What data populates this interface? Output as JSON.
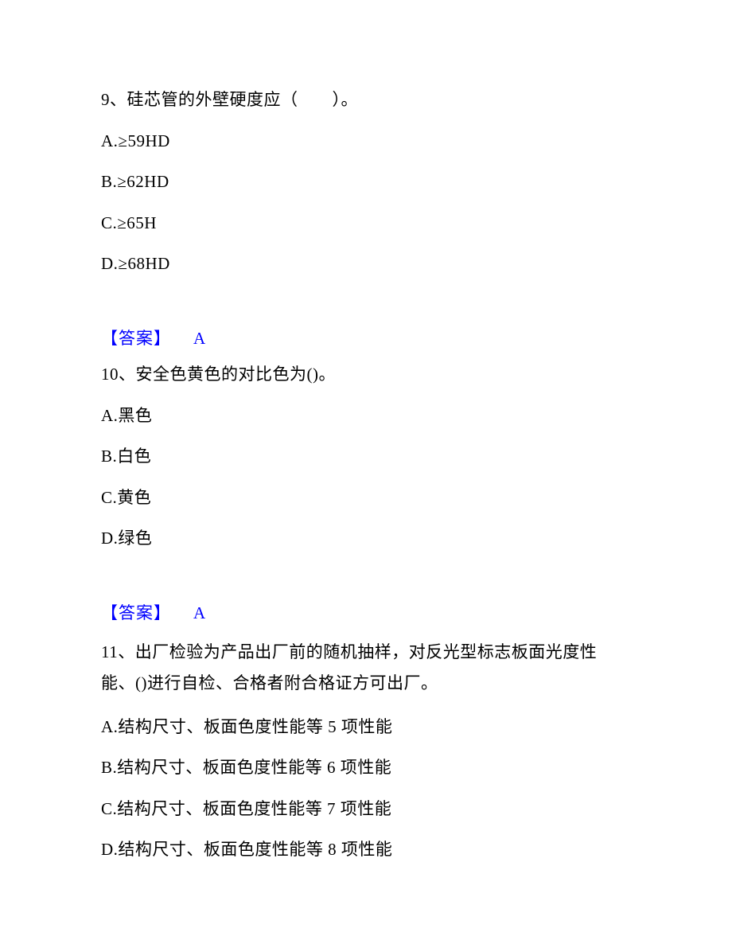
{
  "questions": [
    {
      "number_label": "9、",
      "text": "硅芯管的外壁硬度应（　　）。",
      "options": [
        {
          "label": "A.",
          "text": "≥59HD"
        },
        {
          "label": "B.",
          "text": "≥62HD"
        },
        {
          "label": "C.",
          "text": "≥65H"
        },
        {
          "label": "D.",
          "text": "≥68HD"
        }
      ],
      "answer_label": "【答案】",
      "answer_value": "A"
    },
    {
      "number_label": "10、",
      "text": "安全色黄色的对比色为()。",
      "options": [
        {
          "label": "A.",
          "text": "黑色"
        },
        {
          "label": "B.",
          "text": "白色"
        },
        {
          "label": "C.",
          "text": "黄色"
        },
        {
          "label": "D.",
          "text": "绿色"
        }
      ],
      "answer_label": "【答案】",
      "answer_value": "A"
    },
    {
      "number_label": "11、",
      "text": "出厂检验为产品出厂前的随机抽样，对反光型标志板面光度性能、()进行自检、合格者附合格证方可出厂。",
      "options": [
        {
          "label": "A.",
          "text": "结构尺寸、板面色度性能等 5 项性能"
        },
        {
          "label": "B.",
          "text": "结构尺寸、板面色度性能等 6 项性能"
        },
        {
          "label": "C.",
          "text": "结构尺寸、板面色度性能等 7 项性能"
        },
        {
          "label": "D.",
          "text": "结构尺寸、板面色度性能等 8 项性能"
        }
      ]
    }
  ]
}
